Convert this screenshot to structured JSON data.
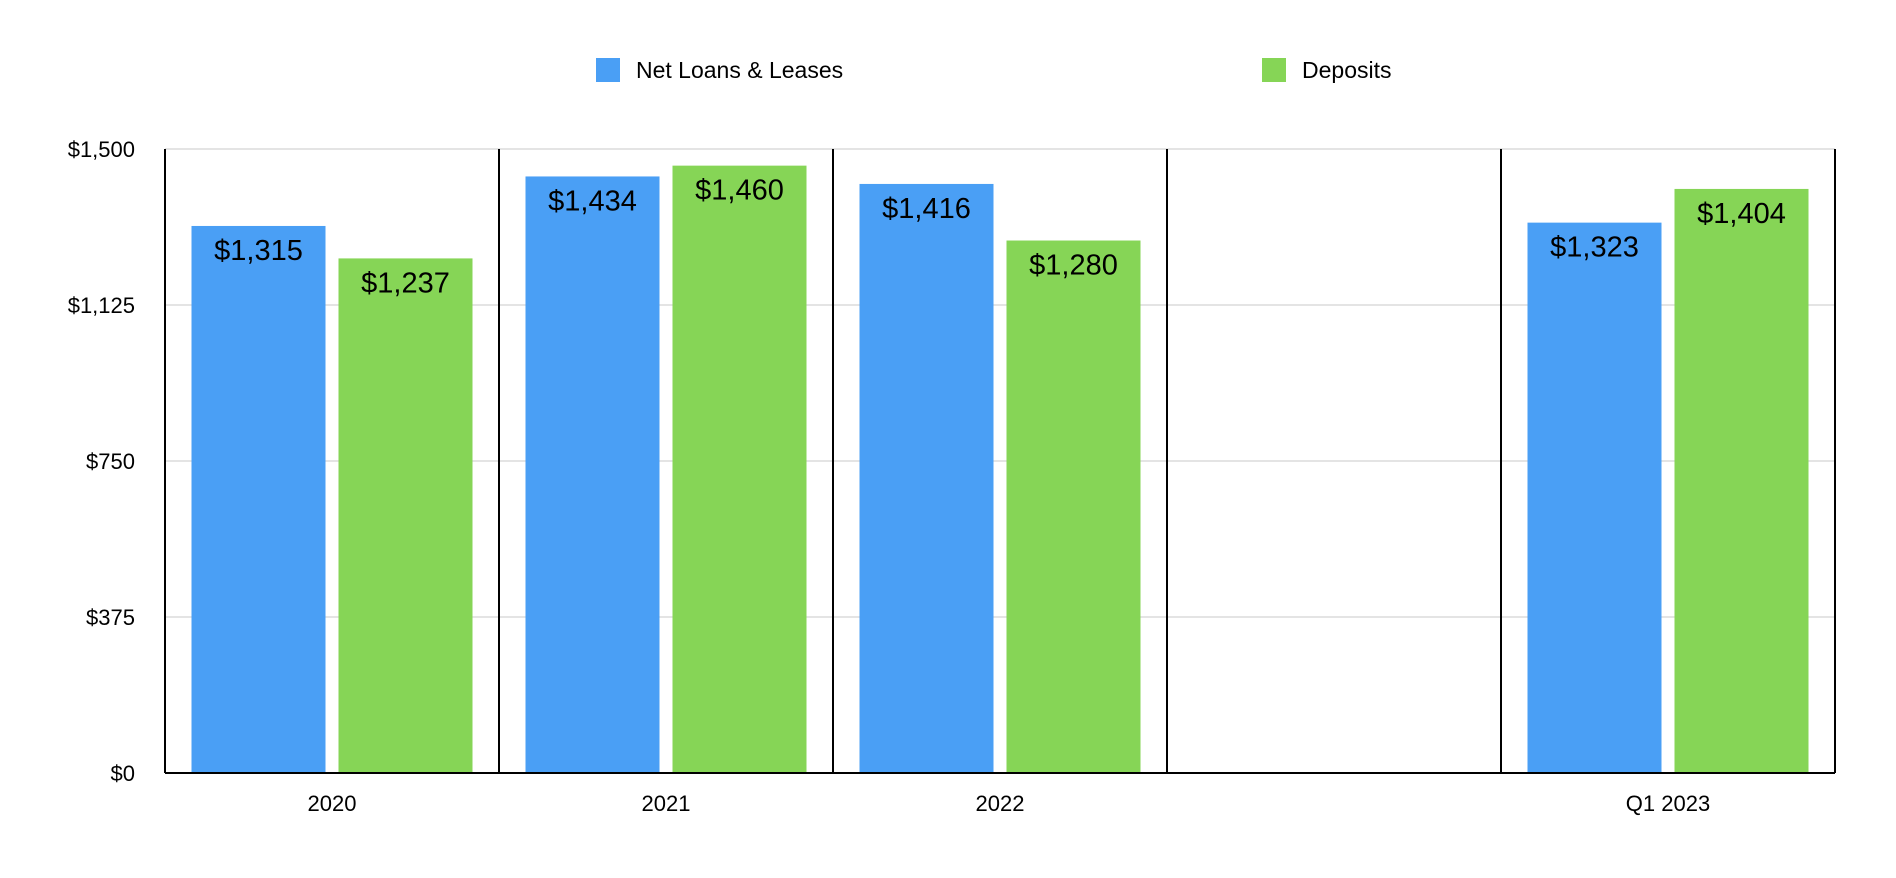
{
  "chart_data": {
    "type": "bar",
    "title": "",
    "xlabel": "",
    "ylabel": "",
    "categories": [
      "2020",
      "2021",
      "2022",
      "",
      "Q1 2023"
    ],
    "series": [
      {
        "name": "Net Loans & Leases",
        "color": "#4a9ff5",
        "values": [
          1315,
          1434,
          1416,
          null,
          1323
        ],
        "labels": [
          "$1,315",
          "$1,434",
          "$1,416",
          "",
          "$1,323"
        ]
      },
      {
        "name": "Deposits",
        "color": "#86d556",
        "values": [
          1237,
          1460,
          1280,
          null,
          1404
        ],
        "labels": [
          "$1,237",
          "$1,460",
          "$1,280",
          "",
          "$1,404"
        ]
      }
    ],
    "ylim": [
      0,
      1500
    ],
    "y_ticks": [
      0,
      375,
      750,
      1125,
      1500
    ],
    "y_tick_labels": [
      "$0",
      "$375",
      "$750",
      "$1,125",
      "$1,500"
    ],
    "grid": true,
    "legend_position": "top",
    "category_separators": true
  }
}
